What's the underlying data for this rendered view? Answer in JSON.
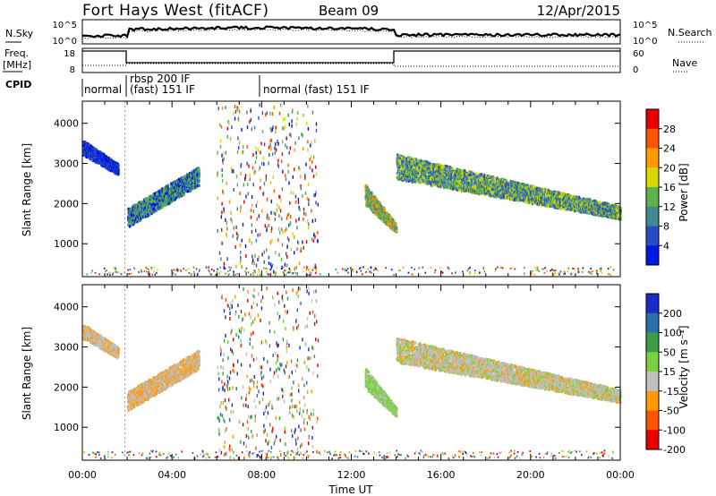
{
  "header": {
    "station": "Fort Hays West (fitACF)",
    "beam": "Beam 09",
    "date": "12/Apr/2015"
  },
  "aux_panels": {
    "nsky": {
      "label": "N.Sky",
      "ticks": [
        "10^5",
        "10^0"
      ]
    },
    "nsearch": {
      "label": "N.Search",
      "ticks": [
        "10^5",
        "10^0"
      ]
    },
    "freq": {
      "label_top": "Freq.",
      "label_bottom": "[MHz]",
      "ticks": [
        "18",
        "8"
      ]
    },
    "nave": {
      "label": "Nave",
      "ticks": [
        "60",
        "0"
      ]
    },
    "cpid": {
      "label": "CPID",
      "modes": [
        {
          "start": 0.0,
          "end": 1.9,
          "lines": [
            "normal"
          ]
        },
        {
          "start": 1.9,
          "end": 7.5,
          "lines": [
            "rbsp 200 IF",
            "(fast) 151 IF"
          ]
        },
        {
          "start": 7.5,
          "end": 24.0,
          "lines": [
            "normal (fast) 151 IF"
          ]
        }
      ]
    }
  },
  "chart_data": [
    {
      "type": "heatmap",
      "name": "power",
      "ylabel": "Slant Range [km]",
      "yticks": [
        1000,
        2000,
        3000,
        4000
      ],
      "ylim": [
        180,
        4550
      ],
      "colorbar": {
        "label": "Power [dB]",
        "ticks": [
          "4",
          "8",
          "12",
          "16",
          "20",
          "24",
          "28"
        ],
        "colors": [
          "#0018e0",
          "#2a4cc4",
          "#3f8a90",
          "#5fb24a",
          "#d8d800",
          "#ff9a00",
          "#ff5500",
          "#e80000"
        ]
      },
      "regions": [
        {
          "t": [
            0.0,
            1.6
          ],
          "range_start": [
            3450,
            2850
          ],
          "range_end": [
            3200,
            2700
          ],
          "colors": [
            "#2a4cc4",
            "#0018e0"
          ]
        },
        {
          "t": [
            2.0,
            5.2
          ],
          "range_start": [
            1400,
            2450
          ],
          "range_end": [
            1750,
            2800
          ],
          "colors": [
            "#0018e0",
            "#3f8a90",
            "#5fb24a"
          ]
        },
        {
          "t": [
            12.6,
            14.0
          ],
          "range_start": [
            2350,
            1350
          ],
          "range_end": [
            1950,
            1250
          ],
          "colors": [
            "#3f8a90",
            "#ff9a00",
            "#5fb24a"
          ]
        },
        {
          "t": [
            14.0,
            24.0
          ],
          "range_start": [
            3100,
            1800
          ],
          "range_end": [
            2600,
            1600
          ],
          "colors": [
            "#2a4cc4",
            "#3f8a90",
            "#5fb24a",
            "#d8d800"
          ]
        }
      ]
    },
    {
      "type": "heatmap",
      "name": "velocity",
      "xlabel": "Time UT",
      "xticks": [
        "00:00",
        "04:00",
        "08:00",
        "12:00",
        "16:00",
        "20:00",
        "00:00"
      ],
      "ylabel": "Slant Range [km]",
      "yticks": [
        1000,
        2000,
        3000,
        4000
      ],
      "ylim": [
        180,
        4550
      ],
      "colorbar": {
        "label": "Velocity [m s⁻¹]",
        "ticks": [
          "200",
          "100",
          "50",
          "15",
          "-15",
          "-50",
          "-100",
          "-200"
        ],
        "colors": [
          "#1a2cc8",
          "#2c70a8",
          "#3a9e46",
          "#7ad040",
          "#c0c0c0",
          "#ff9a00",
          "#ff5500",
          "#e80000"
        ]
      },
      "regions": [
        {
          "t": [
            0.0,
            1.6
          ],
          "range_start": [
            3450,
            2850
          ],
          "range_end": [
            3200,
            2700
          ],
          "colors": [
            "#c0c0c0",
            "#c0c0c0",
            "#ff9a00"
          ]
        },
        {
          "t": [
            2.0,
            5.2
          ],
          "range_start": [
            1400,
            2450
          ],
          "range_end": [
            1750,
            2800
          ],
          "colors": [
            "#c0c0c0",
            "#ff9a00",
            "#d8b080"
          ]
        },
        {
          "t": [
            12.6,
            14.0
          ],
          "range_start": [
            2350,
            1350
          ],
          "range_end": [
            1950,
            1250
          ],
          "colors": [
            "#7ad040",
            "#7ad040",
            "#c0c0c0"
          ]
        },
        {
          "t": [
            14.0,
            24.0
          ],
          "range_start": [
            3100,
            1800
          ],
          "range_end": [
            2600,
            1600
          ],
          "colors": [
            "#c0c0c0",
            "#c0c0c0",
            "#c0c0c0",
            "#ff9a00",
            "#7ad040"
          ]
        }
      ]
    }
  ]
}
